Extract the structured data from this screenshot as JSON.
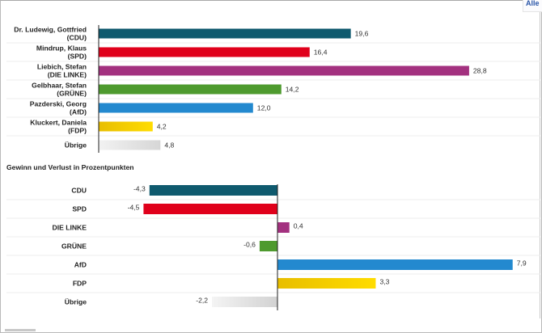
{
  "header": {
    "alle_button": "Alle"
  },
  "chart_data": [
    {
      "type": "bar",
      "orientation": "horizontal",
      "title": "",
      "categories": [
        [
          "Dr. Ludewig, Gottfried",
          "(CDU)"
        ],
        [
          "Mindrup, Klaus",
          "(SPD)"
        ],
        [
          "Liebich, Stefan",
          "(DIE LINKE)"
        ],
        [
          "Gelbhaar, Stefan",
          "(GRÜNE)"
        ],
        [
          "Pazderski, Georg",
          "(AfD)"
        ],
        [
          "Kluckert, Daniela",
          "(FDP)"
        ],
        [
          "Übrige"
        ]
      ],
      "values": [
        19.6,
        16.4,
        28.8,
        14.2,
        12.0,
        4.2,
        4.8
      ],
      "value_labels": [
        "19,6",
        "16,4",
        "28,8",
        "14,2",
        "12,0",
        "4,2",
        "4,8"
      ],
      "colors": [
        "#0f5a6e",
        "#e0001b",
        "#a3317f",
        "#4e9a2e",
        "#2389cf",
        "#f0c800",
        "#dcdcdc"
      ],
      "xlim": [
        0,
        35
      ],
      "grid": false
    },
    {
      "type": "bar",
      "orientation": "horizontal",
      "title": "Gewinn und Verlust in Prozentpunkten",
      "categories": [
        "CDU",
        "SPD",
        "DIE LINKE",
        "GRÜNE",
        "AfD",
        "FDP",
        "Übrige"
      ],
      "values": [
        -4.3,
        -4.5,
        0.4,
        -0.6,
        7.9,
        3.3,
        -2.2
      ],
      "value_labels": [
        "-4,3",
        "-4,5",
        "0,4",
        "-0,6",
        "7,9",
        "3,3",
        "-2,2"
      ],
      "colors": [
        "#0f5a6e",
        "#e0001b",
        "#a3317f",
        "#4e9a2e",
        "#2389cf",
        "#f0c800",
        "#dcdcdc"
      ],
      "xlim": [
        -9.3,
        8.8
      ],
      "grid": false
    }
  ]
}
